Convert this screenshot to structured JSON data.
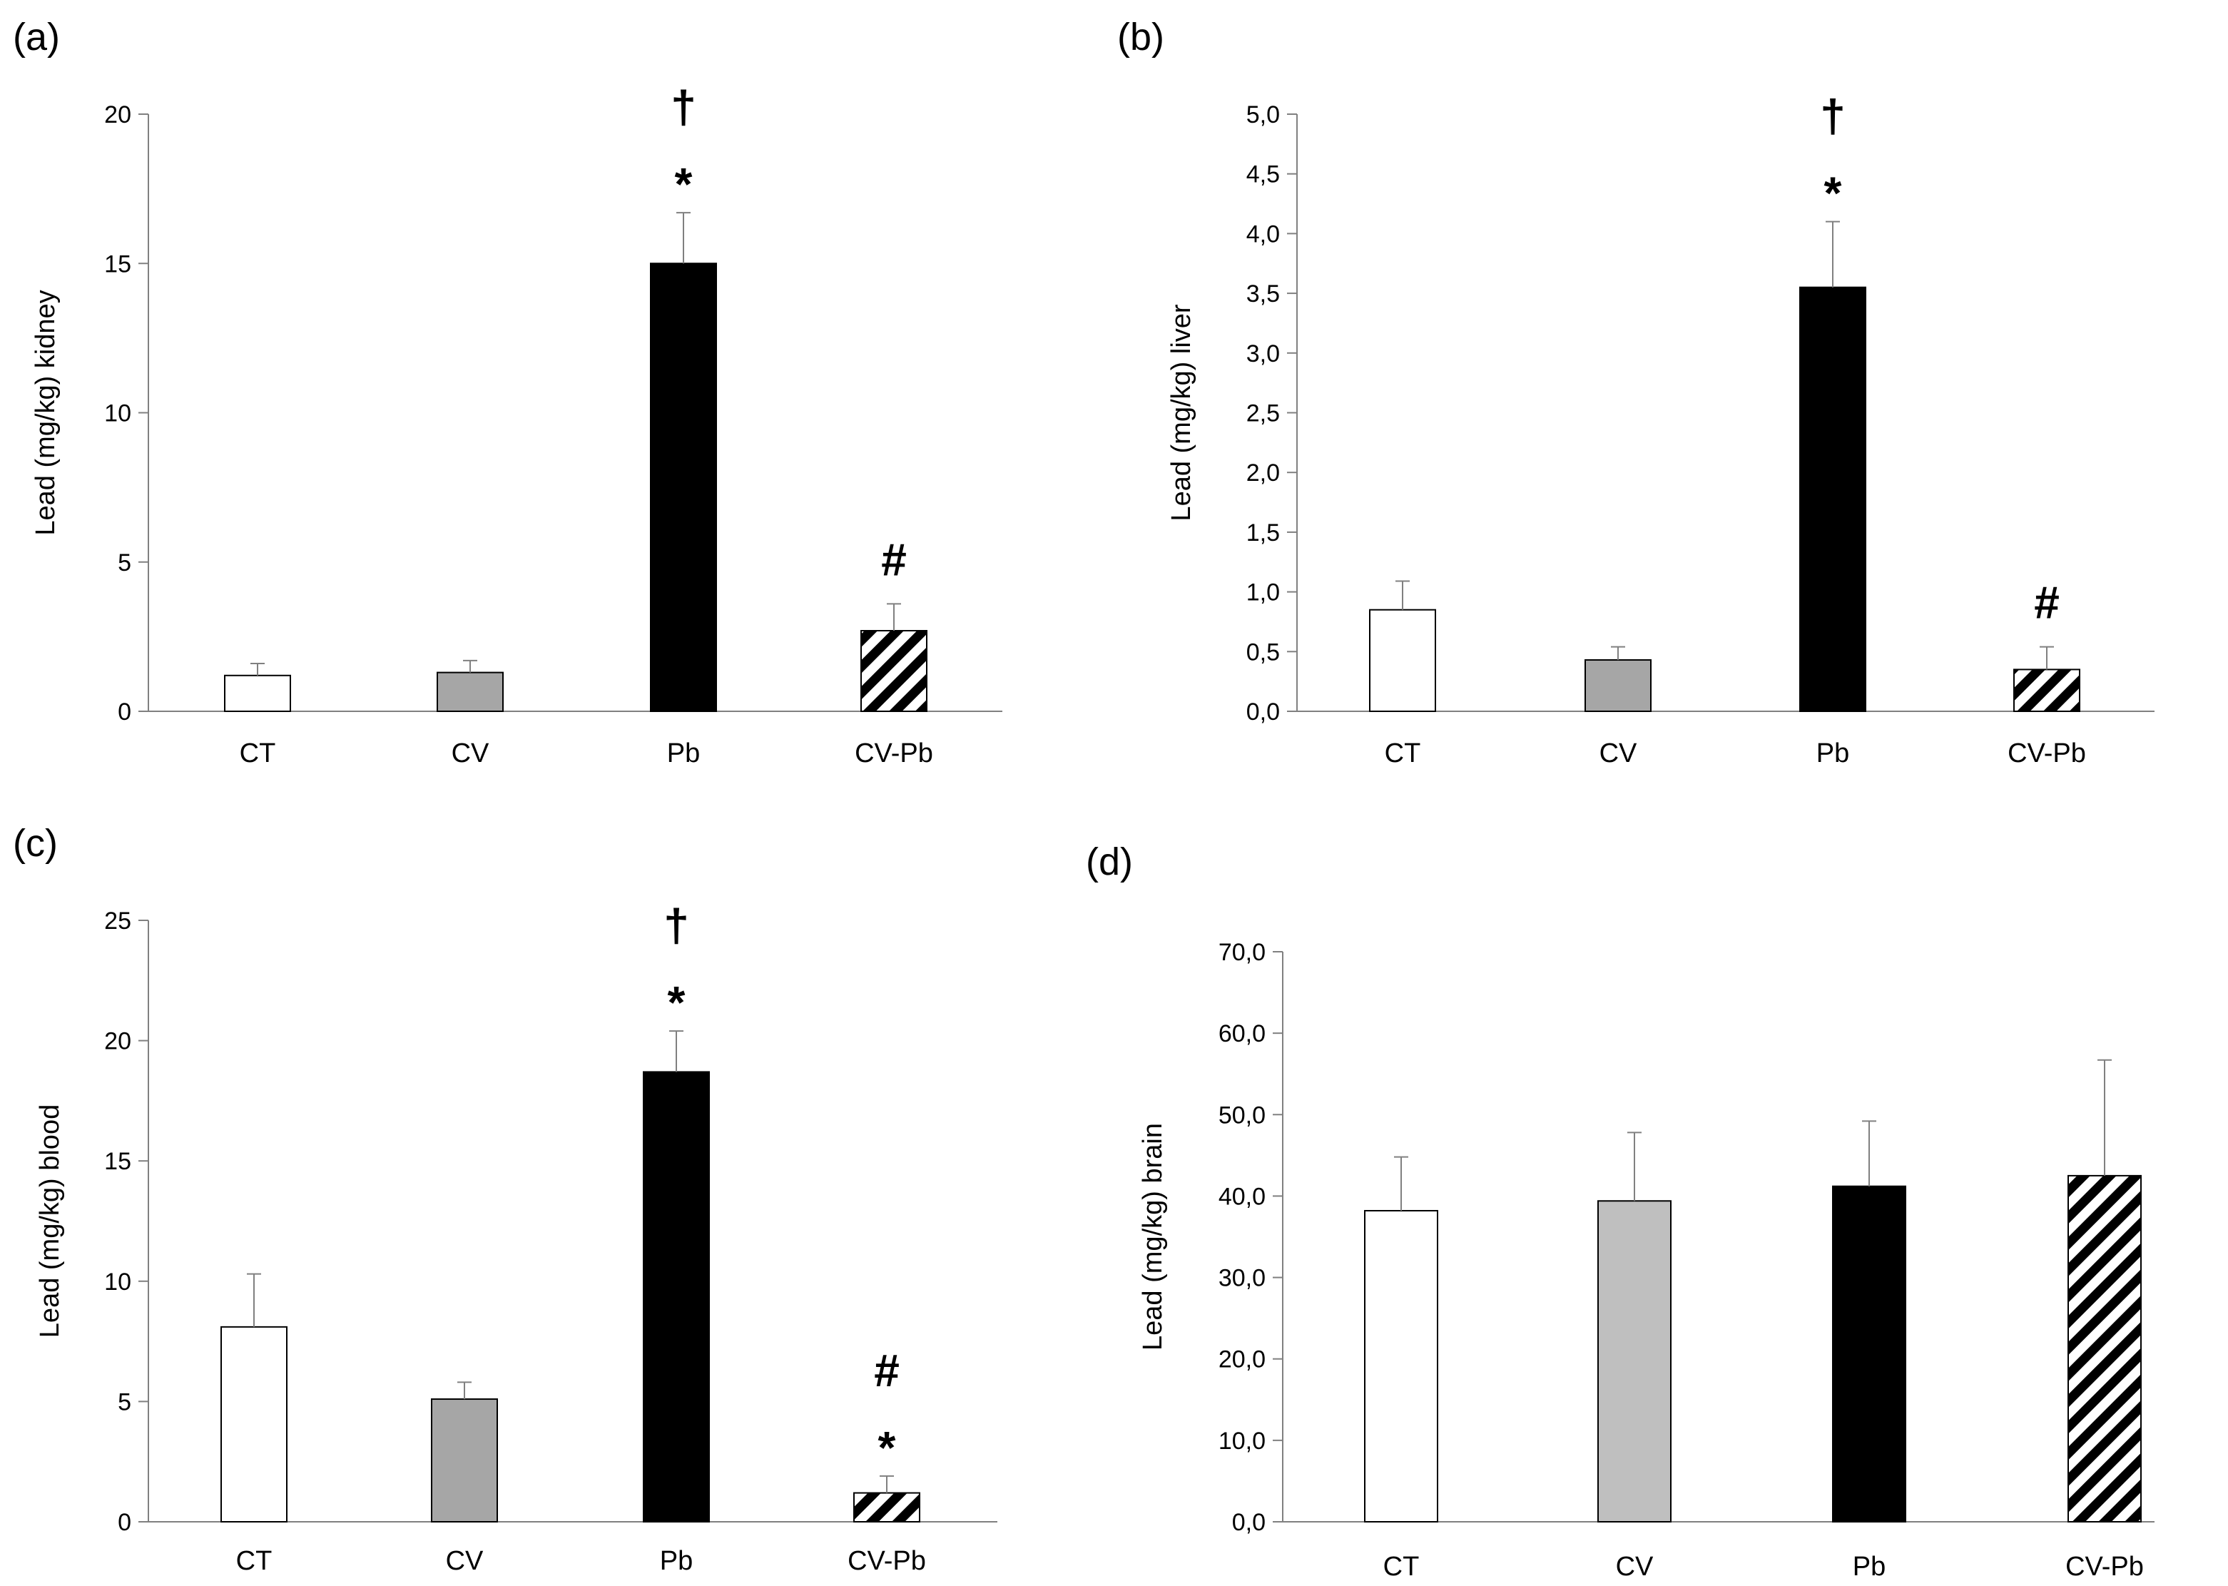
{
  "figure": {
    "groups": [
      "CT",
      "CV",
      "Pb",
      "CV-Pb"
    ],
    "group_colors": [
      "#ffffff",
      "#a6a6a6",
      "#000000",
      "hatch"
    ],
    "panel_d_colors": [
      "#ffffff",
      "#bfbfbf",
      "#000000",
      "hatch"
    ]
  },
  "chart_data": [
    {
      "panel": "(a)",
      "type": "bar",
      "categories": [
        "CT",
        "CV",
        "Pb",
        "CV-Pb"
      ],
      "values": [
        1.2,
        1.3,
        15.0,
        2.7
      ],
      "errors": [
        0.4,
        0.4,
        1.7,
        0.9
      ],
      "annotations": [
        [],
        [],
        [
          "†",
          "*"
        ],
        [
          "#"
        ]
      ],
      "ylabel": "Lead (mg/kg) kidney",
      "ylim": [
        0,
        20
      ],
      "yticks": [
        "0",
        "5",
        "10",
        "15",
        "20"
      ]
    },
    {
      "panel": "(b)",
      "type": "bar",
      "categories": [
        "CT",
        "CV",
        "Pb",
        "CV-Pb"
      ],
      "values": [
        0.85,
        0.43,
        3.55,
        0.35
      ],
      "errors": [
        0.24,
        0.11,
        0.55,
        0.19
      ],
      "annotations": [
        [],
        [],
        [
          "†",
          "*"
        ],
        [
          "#"
        ]
      ],
      "ylabel": "Lead (mg/kg) liver",
      "ylim": [
        0,
        5
      ],
      "yticks": [
        "0,0",
        "0,5",
        "1,0",
        "1,5",
        "2,0",
        "2,5",
        "3,0",
        "3,5",
        "4,0",
        "4,5",
        "5,0"
      ]
    },
    {
      "panel": "(c)",
      "type": "bar",
      "categories": [
        "CT",
        "CV",
        "Pb",
        "CV-Pb"
      ],
      "values": [
        8.1,
        5.1,
        18.7,
        1.2
      ],
      "errors": [
        2.2,
        0.7,
        1.7,
        0.7
      ],
      "annotations": [
        [],
        [],
        [
          "†",
          "*"
        ],
        [
          "#",
          "*"
        ]
      ],
      "ylabel": "Lead (mg/kg) blood",
      "ylim": [
        0,
        25
      ],
      "yticks": [
        "0",
        "5",
        "10",
        "15",
        "20",
        "25"
      ]
    },
    {
      "panel": "(d)",
      "type": "bar",
      "categories": [
        "CT",
        "CV",
        "Pb",
        "CV-Pb"
      ],
      "values": [
        38.2,
        39.4,
        41.2,
        42.5
      ],
      "errors": [
        6.6,
        8.4,
        8.0,
        14.2
      ],
      "annotations": [
        [],
        [],
        [],
        []
      ],
      "ylabel": "Lead (mg/kg) brain",
      "ylim": [
        0,
        70
      ],
      "yticks": [
        "0,0",
        "10,0",
        "20,0",
        "30,0",
        "40,0",
        "50,0",
        "60,0",
        "70,0"
      ]
    }
  ]
}
